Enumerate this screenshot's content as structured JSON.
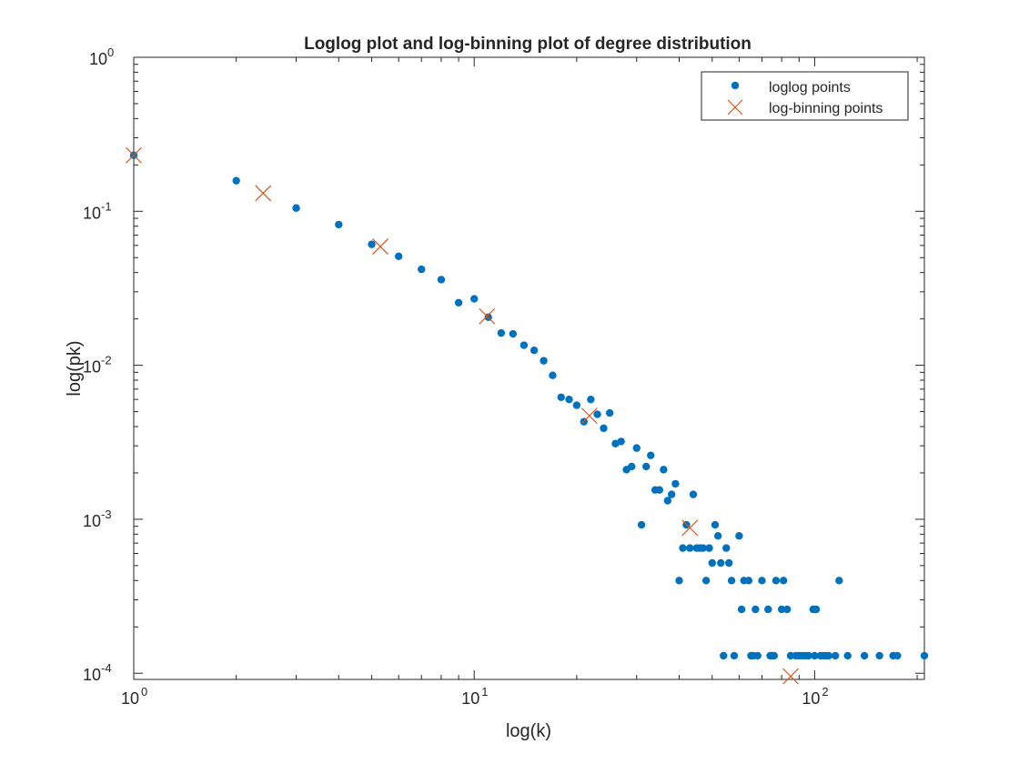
{
  "chart_data": {
    "type": "scatter",
    "title": "Loglog plot and log-binning plot of degree distribution",
    "xlabel": "log(k)",
    "ylabel": "log(pk)",
    "xscale": "log",
    "yscale": "log",
    "xlim": [
      1,
      210
    ],
    "ylim": [
      9.12e-05,
      1
    ],
    "x_ticks": [
      {
        "value": 1,
        "base": "10",
        "exp": "0"
      },
      {
        "value": 10,
        "base": "10",
        "exp": "1"
      },
      {
        "value": 100,
        "base": "10",
        "exp": "2"
      }
    ],
    "y_ticks": [
      {
        "value": 1,
        "base": "10",
        "exp": "0"
      },
      {
        "value": 0.1,
        "base": "10",
        "exp": "-1"
      },
      {
        "value": 0.01,
        "base": "10",
        "exp": "-2"
      },
      {
        "value": 0.001,
        "base": "10",
        "exp": "-3"
      },
      {
        "value": 0.0001,
        "base": "10",
        "exp": "-4"
      }
    ],
    "grid": false,
    "legend_position": "top-right",
    "series": [
      {
        "name": "loglog points",
        "marker": "dot",
        "color": "#0072BD",
        "points": [
          [
            1,
            0.231
          ],
          [
            2,
            0.158
          ],
          [
            3,
            0.105
          ],
          [
            4,
            0.082
          ],
          [
            5,
            0.061
          ],
          [
            6,
            0.051
          ],
          [
            7,
            0.042
          ],
          [
            8,
            0.036
          ],
          [
            9,
            0.0255
          ],
          [
            10,
            0.027
          ],
          [
            11,
            0.0205
          ],
          [
            12,
            0.0162
          ],
          [
            13,
            0.016
          ],
          [
            14,
            0.0135
          ],
          [
            15,
            0.0125
          ],
          [
            16,
            0.0107
          ],
          [
            17,
            0.0086
          ],
          [
            18,
            0.0062
          ],
          [
            19,
            0.006
          ],
          [
            20,
            0.0055
          ],
          [
            21,
            0.0043
          ],
          [
            22,
            0.006
          ],
          [
            23,
            0.0048
          ],
          [
            24,
            0.0039
          ],
          [
            25,
            0.0049
          ],
          [
            26,
            0.0031
          ],
          [
            27,
            0.0032
          ],
          [
            28,
            0.0021
          ],
          [
            29,
            0.0022
          ],
          [
            30,
            0.0029
          ],
          [
            31,
            0.00092
          ],
          [
            32,
            0.0022
          ],
          [
            33,
            0.0026
          ],
          [
            34,
            0.00155
          ],
          [
            35,
            0.00155
          ],
          [
            36,
            0.0021
          ],
          [
            37,
            0.00132
          ],
          [
            38,
            0.00145
          ],
          [
            39,
            0.0017
          ],
          [
            40,
            0.0004
          ],
          [
            41,
            0.00065
          ],
          [
            42,
            0.00092
          ],
          [
            43,
            0.00065
          ],
          [
            44,
            0.00145
          ],
          [
            45,
            0.00065
          ],
          [
            46,
            0.00065
          ],
          [
            47,
            0.00065
          ],
          [
            48,
            0.0004
          ],
          [
            49,
            0.00065
          ],
          [
            50,
            0.00052
          ],
          [
            51,
            0.00092
          ],
          [
            52,
            0.00078
          ],
          [
            53,
            0.00052
          ],
          [
            54,
            0.00013
          ],
          [
            55,
            0.00065
          ],
          [
            56,
            0.00052
          ],
          [
            57,
            0.0004
          ],
          [
            58,
            0.00013
          ],
          [
            60,
            0.00078
          ],
          [
            61,
            0.00026
          ],
          [
            62,
            0.0004
          ],
          [
            64,
            0.0004
          ],
          [
            65,
            0.00013
          ],
          [
            66,
            0.00013
          ],
          [
            67,
            0.00026
          ],
          [
            68,
            0.00013
          ],
          [
            70,
            0.0004
          ],
          [
            73,
            0.00026
          ],
          [
            74,
            0.00013
          ],
          [
            75,
            0.00013
          ],
          [
            76,
            0.00013
          ],
          [
            77,
            0.0004
          ],
          [
            80,
            0.00026
          ],
          [
            81,
            0.0004
          ],
          [
            83,
            0.00026
          ],
          [
            85,
            0.00013
          ],
          [
            88,
            0.00013
          ],
          [
            90,
            0.00013
          ],
          [
            92,
            0.00013
          ],
          [
            94,
            0.00013
          ],
          [
            96,
            0.00013
          ],
          [
            99,
            0.00026
          ],
          [
            100,
            0.00013
          ],
          [
            101,
            0.00026
          ],
          [
            104,
            0.00013
          ],
          [
            106,
            0.00013
          ],
          [
            108,
            0.00013
          ],
          [
            110,
            0.00013
          ],
          [
            115,
            0.00013
          ],
          [
            118,
            0.0004
          ],
          [
            125,
            0.00013
          ],
          [
            140,
            0.00013
          ],
          [
            155,
            0.00013
          ],
          [
            170,
            0.00013
          ],
          [
            175,
            0.00013
          ],
          [
            210,
            0.00013
          ]
        ]
      },
      {
        "name": "log-binning points",
        "marker": "x",
        "color": "#D95319",
        "points": [
          [
            1,
            0.231
          ],
          [
            2.4,
            0.131
          ],
          [
            5.3,
            0.059
          ],
          [
            10.9,
            0.0208
          ],
          [
            21.8,
            0.0047
          ],
          [
            43,
            0.00088
          ],
          [
            85,
            9.55e-05
          ]
        ]
      }
    ]
  }
}
